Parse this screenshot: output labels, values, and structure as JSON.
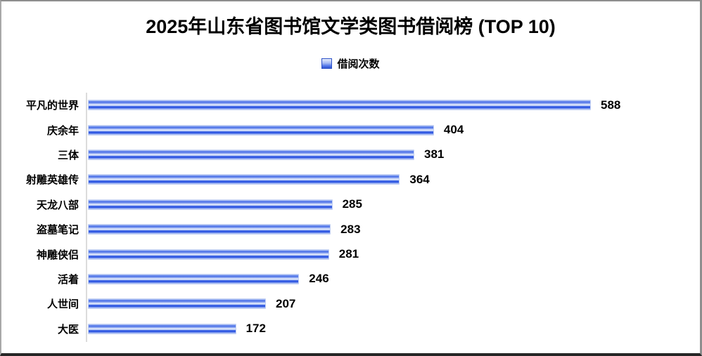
{
  "chart_data": {
    "type": "bar",
    "orientation": "horizontal",
    "title": "2025年山东省图书馆文学类图书借阅榜 (TOP 10)",
    "legend": {
      "label": "借阅次数",
      "position": "top-center",
      "marker_color": "#4d72e8"
    },
    "categories": [
      "平凡的世界",
      "庆余年",
      "三体",
      "射雕英雄传",
      "天龙八部",
      "盗墓笔记",
      "神雕侠侣",
      "活着",
      "人世间",
      "大医"
    ],
    "values": [
      588,
      404,
      381,
      364,
      285,
      283,
      281,
      246,
      207,
      172
    ],
    "value_labels_shown": true,
    "grid": false,
    "x_axis_tick_labels_visible": false,
    "colors": {
      "bar_main": "#2851e0",
      "bar_highlight": "#e9effc",
      "bar_edge": "#c3d0f2",
      "axis_line": "#dcdcdc",
      "text": "#000000",
      "background": "#ffffff",
      "frame_border": "#8e8e8e",
      "frame_bottom": "#262626"
    }
  }
}
